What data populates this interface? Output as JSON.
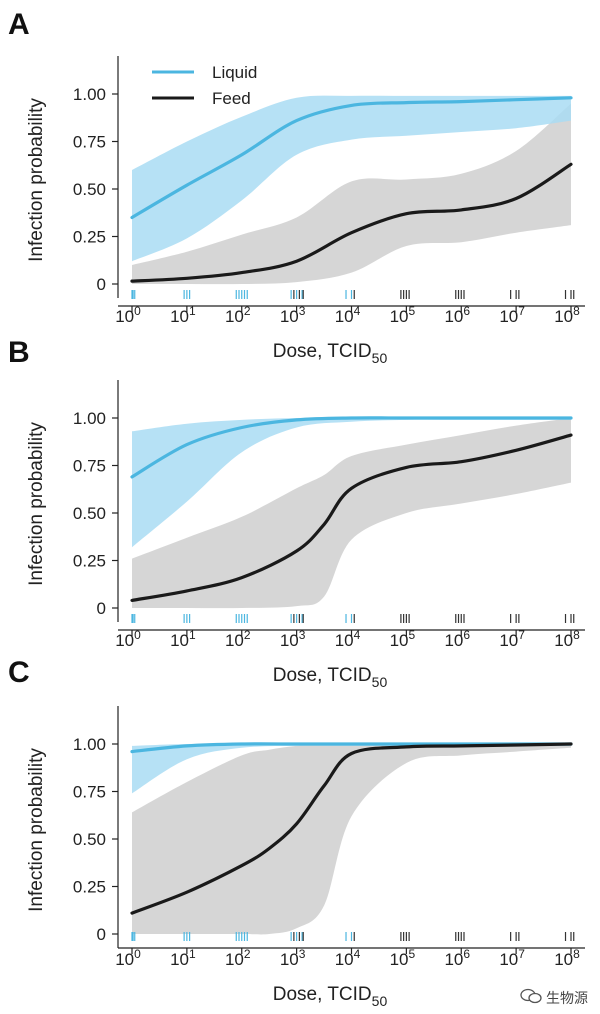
{
  "chart_data": [
    {
      "panel": "A",
      "type": "line",
      "xlabel": "Dose, TCID50",
      "ylabel": "Infection probability",
      "xscale": "log10",
      "xlim_log10": [
        -0.3,
        8.3
      ],
      "ylim": [
        -0.05,
        1.18
      ],
      "yticks": [
        0,
        0.25,
        0.5,
        0.75,
        1.0
      ],
      "ytick_labels": [
        "0",
        "0.25",
        "0.50",
        "0.75",
        "1.00"
      ],
      "xticks_log10": [
        0,
        1,
        2,
        3,
        4,
        5,
        6,
        7,
        8
      ],
      "legend": {
        "position": "top-left",
        "entries": [
          "Liquid",
          "Feed"
        ]
      },
      "series": [
        {
          "name": "Liquid",
          "color": "#4bb6e0",
          "band_color": "#a9dcf3",
          "x_log10": [
            0,
            1,
            2,
            3,
            4,
            5,
            6,
            7,
            8
          ],
          "values": [
            0.35,
            0.52,
            0.68,
            0.86,
            0.94,
            0.955,
            0.96,
            0.97,
            0.98
          ],
          "lower": [
            0.12,
            0.24,
            0.44,
            0.68,
            0.76,
            0.78,
            0.8,
            0.82,
            0.86
          ],
          "upper": [
            0.6,
            0.75,
            0.88,
            0.98,
            0.99,
            0.99,
            0.99,
            0.99,
            0.99
          ]
        },
        {
          "name": "Feed",
          "color": "#1a1a1a",
          "band_color": "#d4d4d4",
          "x_log10": [
            0,
            1,
            2,
            3,
            4,
            5,
            6,
            7,
            8
          ],
          "values": [
            0.015,
            0.03,
            0.06,
            0.12,
            0.27,
            0.37,
            0.39,
            0.45,
            0.63
          ],
          "lower": [
            0.0,
            0.0,
            0.0,
            0.01,
            0.06,
            0.2,
            0.22,
            0.27,
            0.31
          ],
          "upper": [
            0.1,
            0.17,
            0.26,
            0.35,
            0.54,
            0.55,
            0.58,
            0.7,
            0.95
          ]
        }
      ],
      "rug": {
        "Liquid": [
          0,
          0.02,
          0.05,
          0.95,
          1.0,
          1.05,
          1.9,
          1.95,
          2.0,
          2.05,
          2.1,
          2.9,
          3.0,
          3.1,
          3.9,
          4.0
        ],
        "Feed": [
          2.95,
          3.05,
          3.12,
          4.05,
          4.9,
          4.95,
          5.0,
          5.05,
          5.9,
          5.95,
          6.0,
          6.05,
          6.9,
          7.0,
          7.05,
          7.9,
          8.0,
          8.05
        ]
      }
    },
    {
      "panel": "B",
      "type": "line",
      "xlabel": "Dose, TCID50",
      "ylabel": "Infection probability",
      "xscale": "log10",
      "xlim_log10": [
        -0.3,
        8.3
      ],
      "ylim": [
        -0.05,
        1.18
      ],
      "yticks": [
        0,
        0.25,
        0.5,
        0.75,
        1.0
      ],
      "ytick_labels": [
        "0",
        "0.25",
        "0.50",
        "0.75",
        "1.00"
      ],
      "xticks_log10": [
        0,
        1,
        2,
        3,
        4,
        5,
        6,
        7,
        8
      ],
      "series": [
        {
          "name": "Liquid",
          "color": "#4bb6e0",
          "band_color": "#a9dcf3",
          "x_log10": [
            0,
            1,
            2,
            3,
            4,
            5,
            6,
            7,
            8
          ],
          "values": [
            0.69,
            0.86,
            0.95,
            0.99,
            1.0,
            1.0,
            1.0,
            1.0,
            1.0
          ],
          "lower": [
            0.32,
            0.56,
            0.82,
            0.95,
            0.98,
            0.99,
            0.99,
            0.99,
            0.99
          ],
          "upper": [
            0.93,
            0.97,
            0.99,
            1.0,
            1.0,
            1.0,
            1.0,
            1.0,
            1.0
          ]
        },
        {
          "name": "Feed",
          "color": "#1a1a1a",
          "band_color": "#d4d4d4",
          "x_log10": [
            0,
            1,
            2,
            3,
            3.5,
            4,
            5,
            6,
            7,
            8
          ],
          "values": [
            0.04,
            0.09,
            0.16,
            0.3,
            0.44,
            0.63,
            0.74,
            0.77,
            0.83,
            0.91
          ],
          "lower": [
            0.0,
            0.0,
            0.0,
            0.01,
            0.06,
            0.36,
            0.5,
            0.55,
            0.6,
            0.66
          ],
          "upper": [
            0.26,
            0.37,
            0.48,
            0.63,
            0.7,
            0.8,
            0.86,
            0.91,
            0.96,
            1.0
          ]
        }
      ],
      "rug": {
        "Liquid": [
          0,
          0.02,
          0.05,
          0.95,
          1.0,
          1.05,
          1.9,
          1.95,
          2.0,
          2.05,
          2.1,
          2.9,
          3.0,
          3.1,
          3.9,
          4.0
        ],
        "Feed": [
          2.95,
          3.05,
          3.12,
          4.05,
          4.9,
          4.95,
          5.0,
          5.05,
          5.9,
          5.95,
          6.0,
          6.05,
          6.9,
          7.0,
          7.05,
          7.9,
          8.0,
          8.05
        ]
      }
    },
    {
      "panel": "C",
      "type": "line",
      "xlabel": "Dose, TCID50",
      "ylabel": "Infection probability",
      "xscale": "log10",
      "xlim_log10": [
        -0.3,
        8.3
      ],
      "ylim": [
        -0.05,
        1.18
      ],
      "yticks": [
        0,
        0.25,
        0.5,
        0.75,
        1.0
      ],
      "ytick_labels": [
        "0",
        "0.25",
        "0.50",
        "0.75",
        "1.00"
      ],
      "xticks_log10": [
        0,
        1,
        2,
        3,
        4,
        5,
        6,
        7,
        8
      ],
      "series": [
        {
          "name": "Liquid",
          "color": "#4bb6e0",
          "band_color": "#a9dcf3",
          "x_log10": [
            0,
            1,
            2,
            3,
            4,
            5,
            6,
            7,
            8
          ],
          "values": [
            0.96,
            0.99,
            1.0,
            1.0,
            1.0,
            1.0,
            1.0,
            1.0,
            1.0
          ],
          "lower": [
            0.74,
            0.92,
            0.98,
            0.99,
            0.99,
            0.99,
            0.99,
            0.99,
            0.99
          ],
          "upper": [
            0.99,
            1.0,
            1.0,
            1.0,
            1.0,
            1.0,
            1.0,
            1.0,
            1.0
          ]
        },
        {
          "name": "Feed",
          "color": "#1a1a1a",
          "band_color": "#d4d4d4",
          "x_log10": [
            0,
            1,
            2,
            2.5,
            3,
            3.5,
            4,
            5,
            6,
            7,
            8
          ],
          "values": [
            0.11,
            0.22,
            0.36,
            0.45,
            0.58,
            0.78,
            0.95,
            0.985,
            0.99,
            0.995,
            1.0
          ],
          "lower": [
            0.0,
            0.0,
            0.0,
            0.0,
            0.03,
            0.15,
            0.62,
            0.9,
            0.94,
            0.96,
            0.98
          ],
          "upper": [
            0.64,
            0.8,
            0.94,
            0.97,
            0.99,
            1.0,
            1.0,
            1.0,
            1.0,
            1.0,
            1.0
          ]
        }
      ],
      "rug": {
        "Liquid": [
          0,
          0.02,
          0.05,
          0.95,
          1.0,
          1.05,
          1.9,
          1.95,
          2.0,
          2.05,
          2.1,
          2.9,
          3.0,
          3.1,
          3.9,
          4.0
        ],
        "Feed": [
          2.95,
          3.05,
          3.12,
          4.05,
          4.9,
          4.95,
          5.0,
          5.05,
          5.9,
          5.95,
          6.0,
          6.05,
          6.9,
          7.0,
          7.05,
          7.9,
          8.0,
          8.05
        ]
      }
    }
  ],
  "legend_labels": {
    "liquid": "Liquid",
    "feed": "Feed"
  },
  "watermark_text": "生物源",
  "watermark_icon": "wechat-icon"
}
